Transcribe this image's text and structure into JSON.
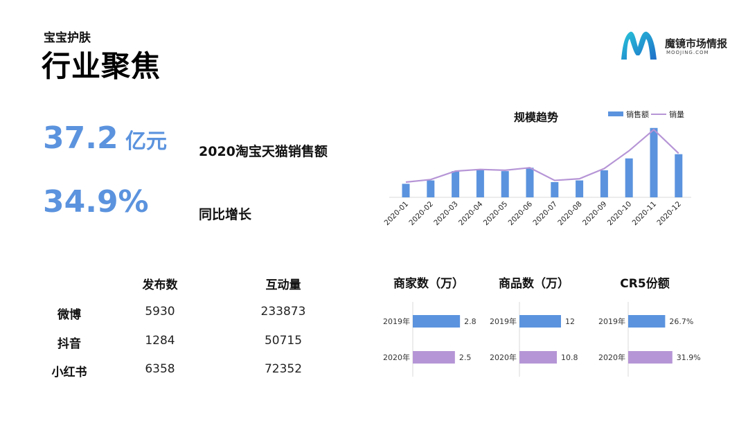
{
  "header": {
    "kicker": "宝宝护肤",
    "title": "行业聚焦"
  },
  "brand": {
    "name": "魔镜市场情报",
    "sub": "MOOJING.COM"
  },
  "kpis": [
    {
      "value": "37.2",
      "unit": " 亿元",
      "label": "2020淘宝天猫销售额"
    },
    {
      "value": "34.9%",
      "unit": "",
      "label": "同比增长"
    }
  ],
  "social_table": {
    "columns": [
      "发布数",
      "互动量"
    ],
    "rows": [
      {
        "platform": "微博",
        "posts": "5930",
        "interactions": "233873"
      },
      {
        "platform": "抖音",
        "posts": "1284",
        "interactions": "50715"
      },
      {
        "platform": "小红书",
        "posts": "6358",
        "interactions": "72352"
      }
    ]
  },
  "colors": {
    "accent_blue": "#5b93de",
    "purple": "#b695d6"
  },
  "chart_data": [
    {
      "type": "bar",
      "title": "规模趋势",
      "categories": [
        "2020-01",
        "2020-02",
        "2020-03",
        "2020-04",
        "2020-05",
        "2020-06",
        "2020-07",
        "2020-08",
        "2020-09",
        "2020-10",
        "2020-11",
        "2020-12"
      ],
      "series": [
        {
          "name": "销售额",
          "type": "bar",
          "color": "#5b93de",
          "values": [
            16,
            20,
            31,
            33,
            31,
            35,
            18,
            20,
            32,
            46,
            82,
            51
          ]
        },
        {
          "name": "销量",
          "type": "line",
          "color": "#b695d6",
          "values": [
            18,
            21,
            31,
            33,
            32,
            35,
            20,
            22,
            34,
            55,
            80,
            52
          ]
        }
      ],
      "legend": "top-right"
    },
    {
      "type": "bar",
      "title": "商家数（万）",
      "categories": [
        "2019年",
        "2020年"
      ],
      "values": [
        2.8,
        2.5
      ],
      "labels": [
        "2.8",
        "2.5"
      ],
      "colors": [
        "#5b93de",
        "#b695d6"
      ],
      "max": 3.0
    },
    {
      "type": "bar",
      "title": "商品数（万）",
      "categories": [
        "2019年",
        "2020年"
      ],
      "values": [
        12,
        10.8
      ],
      "labels": [
        "12",
        "10.8"
      ],
      "colors": [
        "#5b93de",
        "#b695d6"
      ],
      "max": 20
    },
    {
      "type": "bar",
      "title": "CR5份额",
      "categories": [
        "2019年",
        "2020年"
      ],
      "values": [
        26.7,
        31.9
      ],
      "labels": [
        "26.7%",
        "31.9%"
      ],
      "colors": [
        "#5b93de",
        "#b695d6"
      ],
      "max": 65
    }
  ]
}
